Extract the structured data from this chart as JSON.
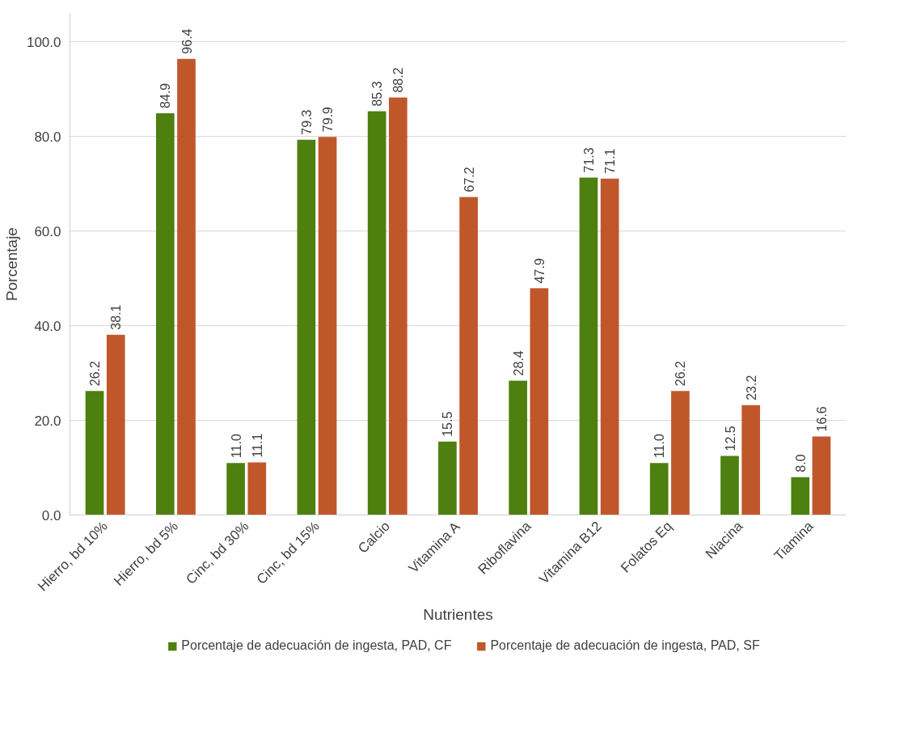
{
  "chart_data": {
    "type": "bar",
    "xlabel": "Nutrientes",
    "ylabel": "Porcentaje",
    "categories": [
      "Hierro, bd 10%",
      "Hierro, bd 5%",
      "Cinc, bd 30%",
      "Cinc, bd 15%",
      "Calcio",
      "Vitamina A",
      "Riboflavina",
      "Vitamina B12",
      "Folatos Eq",
      "Niacina",
      "Tiamina"
    ],
    "series": [
      {
        "name": "Porcentaje de adecuación de ingesta, PAD, CF",
        "color": "#4e8010",
        "values": [
          26.2,
          84.9,
          11.0,
          79.3,
          85.3,
          15.5,
          28.4,
          71.3,
          11.0,
          12.5,
          8.0
        ],
        "value_labels": [
          "26.2",
          "84.9",
          "11.0",
          "79.3",
          "85.3",
          "15.5",
          "28.4",
          "71.3",
          "11.0",
          "12.5",
          "8.0"
        ]
      },
      {
        "name": "Porcentaje de adecuación de ingesta, PAD, SF",
        "color": "#c0572b",
        "values": [
          38.1,
          96.4,
          11.1,
          79.9,
          88.2,
          67.2,
          47.9,
          71.1,
          26.2,
          23.2,
          16.6
        ],
        "value_labels": [
          "38.1",
          "96.4",
          "11.1",
          "79.9",
          "88.2",
          "67.2",
          "47.9",
          "71.1",
          "26.2",
          "23.2",
          "16.6"
        ]
      }
    ],
    "ylim": [
      0,
      106
    ],
    "yticks": [
      {
        "value": 0,
        "label": "0.0"
      },
      {
        "value": 20,
        "label": "20.0"
      },
      {
        "value": 40,
        "label": "40.0"
      },
      {
        "value": 60,
        "label": "60.0"
      },
      {
        "value": 80,
        "label": "80.0"
      },
      {
        "value": 100,
        "label": "100.0"
      }
    ],
    "grid": "y",
    "legend": "bottom"
  }
}
